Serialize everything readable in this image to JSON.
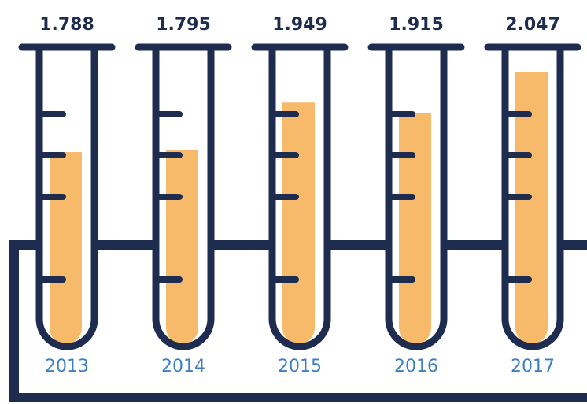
{
  "chart_data": {
    "type": "bar",
    "categories": [
      "2013",
      "2014",
      "2015",
      "2016",
      "2017"
    ],
    "values": [
      1.788,
      1.795,
      1.949,
      1.915,
      2.047
    ],
    "color": "#f7b96a"
  }
}
